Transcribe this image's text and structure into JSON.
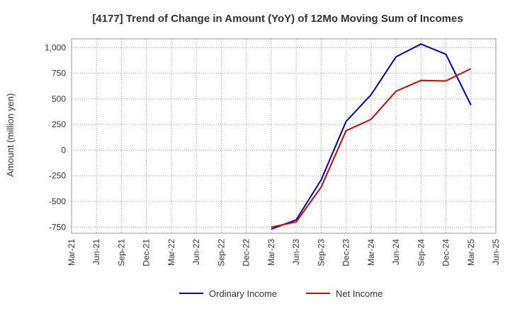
{
  "chart_data": {
    "type": "line",
    "title": "[4177]  Trend of Change in Amount (YoY) of 12Mo Moving Sum of Incomes",
    "xlabel": "",
    "ylabel": "Amount (million yen)",
    "x": [
      "Mar-21",
      "Jun-21",
      "Sep-21",
      "Dec-21",
      "Mar-22",
      "Jun-22",
      "Sep-22",
      "Dec-22",
      "Mar-23",
      "Jun-23",
      "Sep-23",
      "Dec-23",
      "Mar-24",
      "Jun-24",
      "Sep-24",
      "Dec-24",
      "Mar-25",
      "Jun-25"
    ],
    "ylim": [
      -810,
      1085
    ],
    "yticks": [
      1000,
      750,
      500,
      250,
      0,
      -250,
      -500,
      -750
    ],
    "ytick_labels": [
      "1,000",
      "750",
      "500",
      "250",
      "0",
      "-250",
      "-500",
      "-750"
    ],
    "grid": true,
    "legend_position": "bottom",
    "series": [
      {
        "name": "Ordinary Income",
        "color": "#0000cc",
        "values": [
          null,
          null,
          null,
          null,
          null,
          null,
          null,
          null,
          -770,
          -680,
          -290,
          280,
          540,
          910,
          1035,
          935,
          440,
          null
        ]
      },
      {
        "name": "Net Income",
        "color": "#dd0000",
        "values": [
          null,
          null,
          null,
          null,
          null,
          null,
          null,
          null,
          -750,
          -700,
          -360,
          190,
          300,
          575,
          680,
          675,
          795,
          null
        ]
      }
    ]
  }
}
